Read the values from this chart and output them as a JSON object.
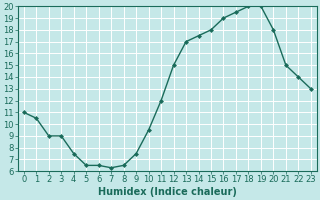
{
  "x": [
    0,
    1,
    2,
    3,
    4,
    5,
    6,
    7,
    8,
    9,
    10,
    11,
    12,
    13,
    14,
    15,
    16,
    17,
    18,
    19,
    20,
    21,
    22,
    23
  ],
  "y": [
    11,
    10.5,
    9,
    9,
    7.5,
    6.5,
    6.5,
    6.3,
    6.5,
    7.5,
    9.5,
    12,
    15,
    17,
    17.5,
    18,
    19,
    19.5,
    20,
    20,
    18,
    15,
    14,
    13
  ],
  "line_color": "#1a6b5a",
  "marker": "D",
  "marker_size": 2.0,
  "xlabel": "Humidex (Indice chaleur)",
  "xlim": [
    -0.5,
    23.5
  ],
  "ylim": [
    6,
    20
  ],
  "yticks": [
    6,
    7,
    8,
    9,
    10,
    11,
    12,
    13,
    14,
    15,
    16,
    17,
    18,
    19,
    20
  ],
  "xticks": [
    0,
    1,
    2,
    3,
    4,
    5,
    6,
    7,
    8,
    9,
    10,
    11,
    12,
    13,
    14,
    15,
    16,
    17,
    18,
    19,
    20,
    21,
    22,
    23
  ],
  "background_color": "#c5e8e8",
  "grid_color": "#ffffff",
  "tick_color": "#1a6b5a",
  "label_color": "#1a6b5a",
  "xlabel_fontsize": 7,
  "tick_fontsize": 6,
  "linewidth": 1.0
}
